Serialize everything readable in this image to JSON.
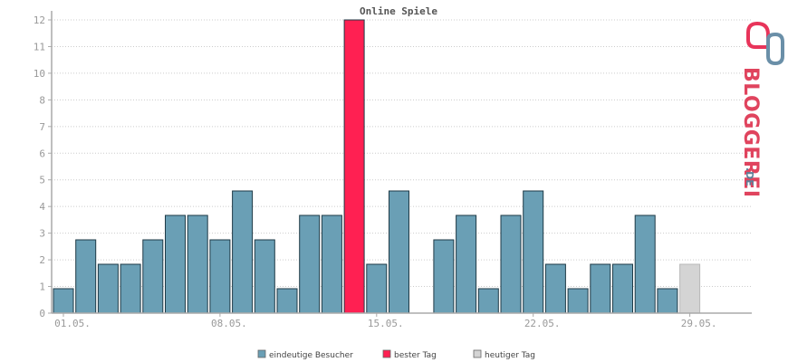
{
  "chart_data": {
    "type": "bar",
    "title": "Online Spiele",
    "ylim": [
      0,
      12
    ],
    "y_tick_labels": [
      "0",
      "1",
      "2",
      "3",
      "4",
      "5",
      "6",
      "7",
      "8",
      "10",
      "11",
      "12"
    ],
    "categories": [
      "01.05.",
      "02.05.",
      "03.05.",
      "04.05.",
      "05.05.",
      "06.05.",
      "07.05.",
      "08.05.",
      "09.05.",
      "10.05.",
      "11.05.",
      "12.05.",
      "13.05.",
      "14.05.",
      "15.05.",
      "16.05.",
      "17.05.",
      "18.05.",
      "19.05.",
      "20.05.",
      "21.05.",
      "22.05.",
      "23.05.",
      "24.05.",
      "25.05.",
      "26.05.",
      "27.05.",
      "28.05.",
      "29.05.",
      "30.05.",
      "31.05."
    ],
    "x_tick_labels": [
      {
        "index": 0,
        "label": "01.05."
      },
      {
        "index": 7,
        "label": "08.05."
      },
      {
        "index": 14,
        "label": "15.05."
      },
      {
        "index": 21,
        "label": "22.05."
      },
      {
        "index": 28,
        "label": "29.05."
      }
    ],
    "series": [
      {
        "name": "eindeutige Besucher",
        "color": "#6a9fb5",
        "values": [
          1,
          3,
          2,
          2,
          3,
          4,
          4,
          3,
          5,
          3,
          1,
          4,
          4,
          0,
          2,
          5,
          0,
          3,
          4,
          1,
          4,
          5,
          2,
          1,
          2,
          2,
          4,
          1,
          0,
          0,
          0
        ]
      },
      {
        "name": "bester Tag",
        "color": "#ff2052",
        "values": [
          0,
          0,
          0,
          0,
          0,
          0,
          0,
          0,
          0,
          0,
          0,
          0,
          0,
          12,
          0,
          0,
          0,
          0,
          0,
          0,
          0,
          0,
          0,
          0,
          0,
          0,
          0,
          0,
          0,
          0,
          0
        ]
      },
      {
        "name": "heutiger Tag",
        "color": "#d4d4d4",
        "values": [
          0,
          0,
          0,
          0,
          0,
          0,
          0,
          0,
          0,
          0,
          0,
          0,
          0,
          0,
          0,
          0,
          0,
          0,
          0,
          0,
          0,
          0,
          0,
          0,
          0,
          0,
          0,
          0,
          2,
          0,
          0
        ]
      }
    ],
    "grid": true,
    "legend_position": "bottom-center"
  },
  "logo": {
    "brand": "BLOGGEREI",
    "suffix": ".DE"
  },
  "colors": {
    "bar_outline": "#1e3a46",
    "grid": "#cccccc",
    "axis": "#aaaaaa"
  }
}
